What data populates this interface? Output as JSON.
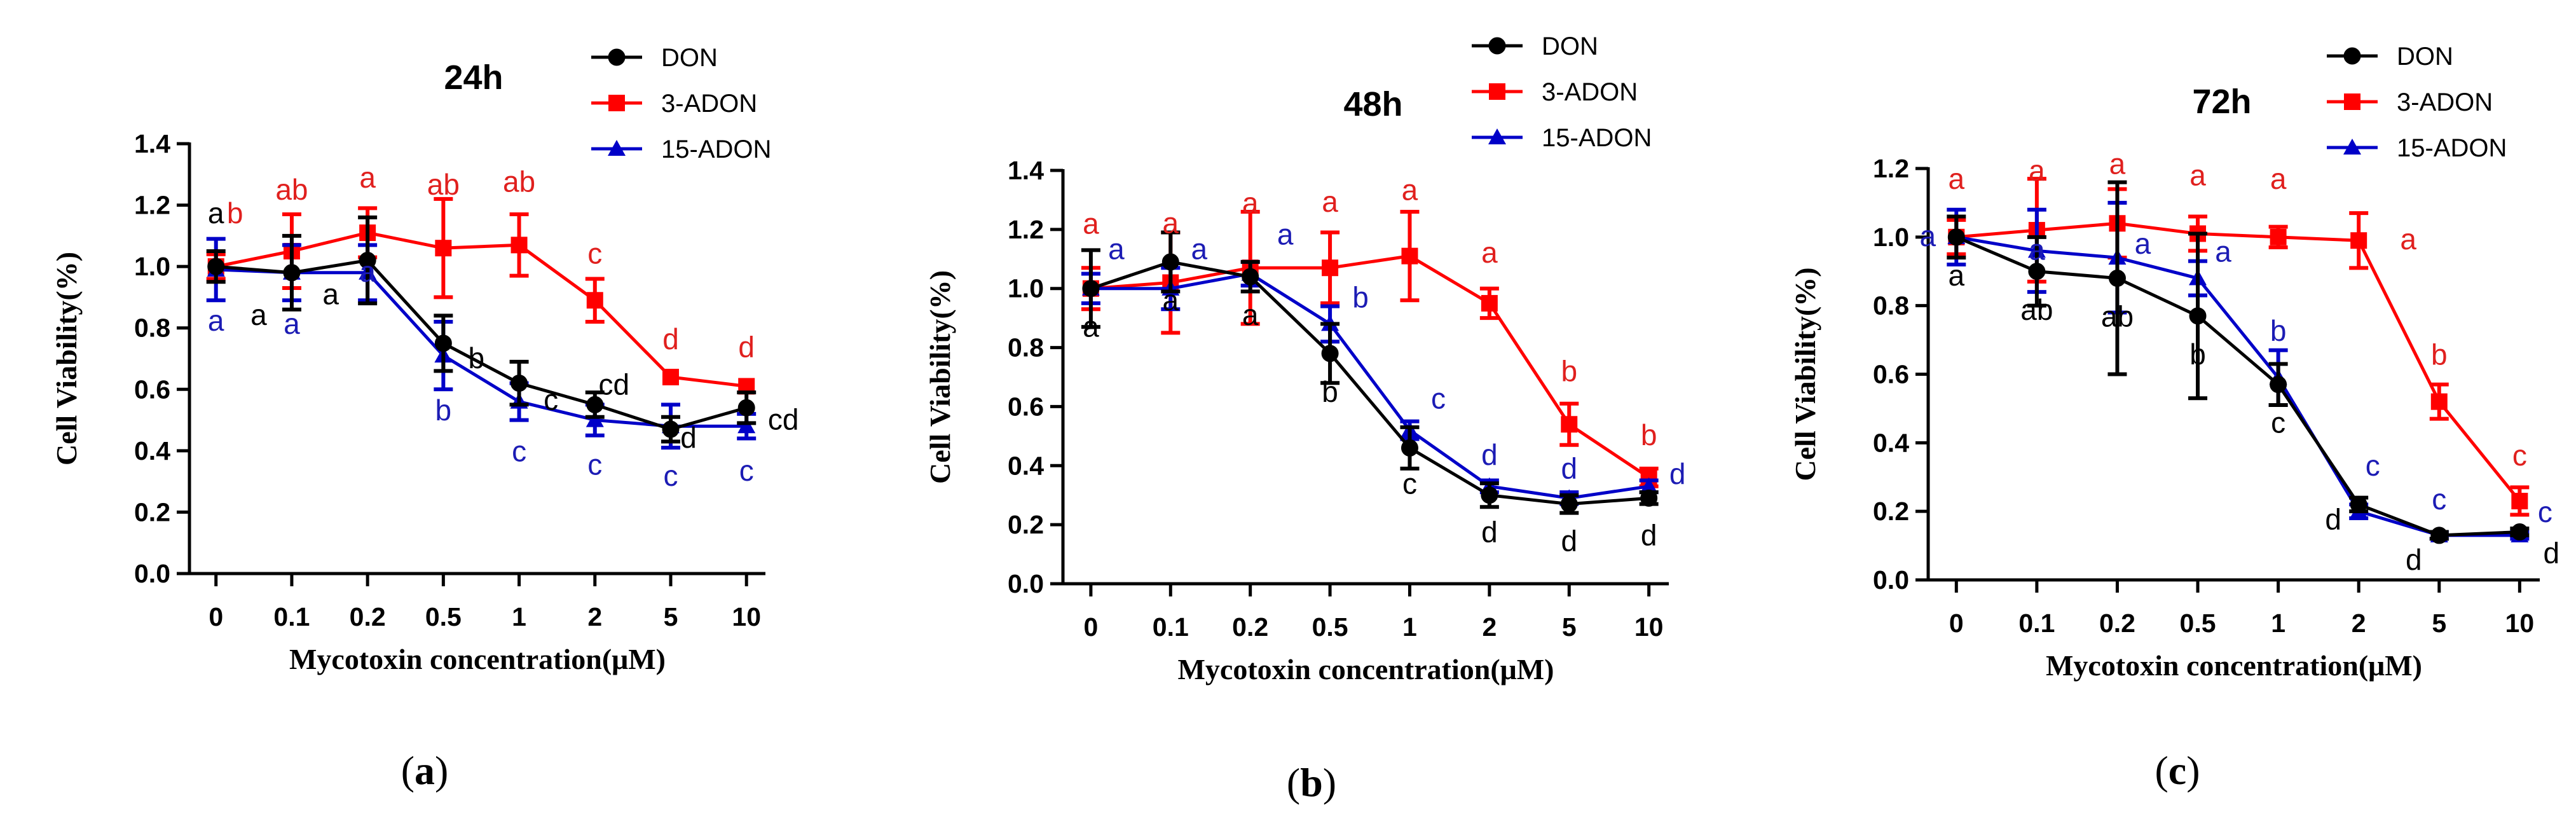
{
  "figure": {
    "panels": [
      {
        "id": "a",
        "caption": "(a)"
      },
      {
        "id": "b",
        "caption": "(b)"
      },
      {
        "id": "c",
        "caption": "(c)"
      }
    ]
  },
  "colors": {
    "DON": "#000000",
    "3-ADON": "#ff0000",
    "15-ADON": "#0000c8",
    "letters_DON": "#000000",
    "letters_3-ADON": "#e0201e",
    "letters_15-ADON": "#1c1cb4"
  },
  "chart_data": [
    {
      "type": "line",
      "title": "24h",
      "xlabel": "Mycotoxin concentration(μM)",
      "ylabel": "Cell  Viability(%)",
      "categories": [
        "0",
        "0.1",
        "0.2",
        "0.5",
        "1",
        "2",
        "5",
        "10"
      ],
      "ylim": [
        0,
        1.4
      ],
      "yticks": [
        "0.0",
        "0.2",
        "0.4",
        "0.6",
        "0.8",
        "1.0",
        "1.2",
        "1.4"
      ],
      "grid": false,
      "legend_position": "top-right",
      "series": [
        {
          "name": "DON",
          "marker": "circle",
          "values": [
            1.0,
            0.98,
            1.02,
            0.75,
            0.62,
            0.55,
            0.47,
            0.54
          ],
          "errors": [
            0.05,
            0.12,
            0.14,
            0.09,
            0.07,
            0.04,
            0.04,
            0.05
          ],
          "letters": [
            "a",
            "a",
            "a",
            "b",
            "c",
            "cd",
            "d",
            "cd"
          ]
        },
        {
          "name": "3-ADON",
          "marker": "square",
          "values": [
            1.0,
            1.05,
            1.11,
            1.06,
            1.07,
            0.89,
            0.64,
            0.61
          ],
          "errors": [
            0.04,
            0.12,
            0.08,
            0.16,
            0.1,
            0.07,
            0.0,
            0.0
          ],
          "letters": [
            "b",
            "ab",
            "a",
            "ab",
            "ab",
            "c",
            "d",
            "d"
          ]
        },
        {
          "name": "15-ADON",
          "marker": "triangle",
          "values": [
            0.99,
            0.98,
            0.98,
            0.71,
            0.56,
            0.5,
            0.48,
            0.48
          ],
          "errors": [
            0.1,
            0.09,
            0.09,
            0.11,
            0.06,
            0.05,
            0.07,
            0.04
          ],
          "letters": [
            "a",
            "a",
            "a",
            "b",
            "c",
            "c",
            "c",
            "c"
          ]
        }
      ]
    },
    {
      "type": "line",
      "title": "48h",
      "xlabel": "Mycotoxin concentration(μM)",
      "ylabel": "Cell  Viability(%)",
      "categories": [
        "0",
        "0.1",
        "0.2",
        "0.5",
        "1",
        "2",
        "5",
        "10"
      ],
      "ylim": [
        0,
        1.4
      ],
      "yticks": [
        "0.0",
        "0.2",
        "0.4",
        "0.6",
        "0.8",
        "1.0",
        "1.2",
        "1.4"
      ],
      "grid": false,
      "legend_position": "top-right",
      "series": [
        {
          "name": "DON",
          "marker": "circle",
          "values": [
            1.0,
            1.09,
            1.04,
            0.78,
            0.46,
            0.3,
            0.27,
            0.29
          ],
          "errors": [
            0.13,
            0.1,
            0.05,
            0.1,
            0.07,
            0.04,
            0.03,
            0.02
          ],
          "letters": [
            "a",
            "a",
            "a",
            "b",
            "c",
            "d",
            "d",
            "d"
          ]
        },
        {
          "name": "3-ADON",
          "marker": "square",
          "values": [
            1.0,
            1.02,
            1.07,
            1.07,
            1.11,
            0.95,
            0.54,
            0.36
          ],
          "errors": [
            0.07,
            0.17,
            0.19,
            0.12,
            0.15,
            0.05,
            0.07,
            0.03
          ],
          "letters": [
            "a",
            "a",
            "a",
            "a",
            "a",
            "a",
            "b",
            "b"
          ]
        },
        {
          "name": "15-ADON",
          "marker": "triangle",
          "values": [
            1.0,
            1.0,
            1.05,
            0.88,
            0.52,
            0.33,
            0.29,
            0.33
          ],
          "errors": [
            0.05,
            0.07,
            0.04,
            0.06,
            0.03,
            0.02,
            0.02,
            0.02
          ],
          "letters": [
            "a",
            "a",
            "a",
            "b",
            "c",
            "d",
            "d",
            "d"
          ]
        }
      ]
    },
    {
      "type": "line",
      "title": "72h",
      "xlabel": "Mycotoxin concentration(μM)",
      "ylabel": "Cell  Viability(%)",
      "categories": [
        "0",
        "0.1",
        "0.2",
        "0.5",
        "1",
        "2",
        "5",
        "10"
      ],
      "ylim": [
        0,
        1.2
      ],
      "yticks": [
        "0.0",
        "0.2",
        "0.4",
        "0.6",
        "0.8",
        "1.0",
        "1.2"
      ],
      "grid": false,
      "legend_position": "top-right",
      "series": [
        {
          "name": "DON",
          "marker": "circle",
          "values": [
            1.0,
            0.9,
            0.88,
            0.77,
            0.57,
            0.22,
            0.13,
            0.14
          ],
          "errors": [
            0.06,
            0.1,
            0.28,
            0.24,
            0.06,
            0.02,
            0.01,
            0.01
          ],
          "letters": [
            "a",
            "ab",
            "ab",
            "b",
            "c",
            "d",
            "d",
            "d"
          ]
        },
        {
          "name": "3-ADON",
          "marker": "square",
          "values": [
            1.0,
            1.02,
            1.04,
            1.01,
            1.0,
            0.99,
            0.52,
            0.23
          ],
          "errors": [
            0.05,
            0.15,
            0.1,
            0.05,
            0.03,
            0.08,
            0.05,
            0.04
          ],
          "letters": [
            "a",
            "a",
            "a",
            "a",
            "a",
            "a",
            "b",
            "c"
          ]
        },
        {
          "name": "15-ADON",
          "marker": "triangle",
          "values": [
            1.0,
            0.96,
            0.94,
            0.88,
            0.59,
            0.2,
            0.13,
            0.13
          ],
          "errors": [
            0.08,
            0.12,
            0.16,
            0.05,
            0.08,
            0.02,
            0.01,
            0.01
          ],
          "letters": [
            "a",
            "a",
            "a",
            "a",
            "b",
            "c",
            "c",
            "c"
          ]
        }
      ]
    }
  ]
}
